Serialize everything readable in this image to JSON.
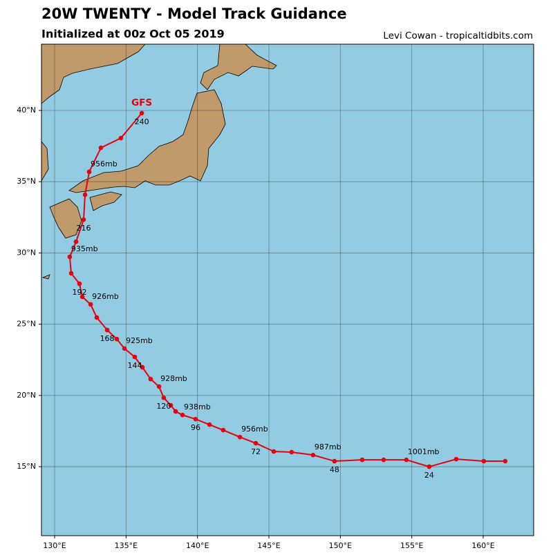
{
  "chart_data": {
    "type": "line",
    "title": "20W TWENTY - Model Track Guidance",
    "subtitle": "Initialized at 00z Oct 05 2019",
    "credit": "Levi Cowan - tropicaltidbits.com",
    "x": [
      161.54,
      160.04,
      158.11,
      156.22,
      154.62,
      153.03,
      151.53,
      149.59,
      148.09,
      146.59,
      145.34,
      144.08,
      142.97,
      141.8,
      140.84,
      139.87,
      138.95,
      138.47,
      138.13,
      137.64,
      137.31,
      136.72,
      136.14,
      135.61,
      134.89,
      134.35,
      133.68,
      132.95,
      132.52,
      131.94,
      131.74,
      131.16,
      131.06,
      131.5,
      132.03,
      132.13,
      132.42,
      133.24,
      134.64,
      136.1
    ],
    "series": [
      {
        "name": "GFS",
        "color": "#e8000b",
        "values": [
          15.39,
          15.39,
          15.53,
          15.0,
          15.48,
          15.48,
          15.48,
          15.39,
          15.82,
          16.02,
          16.07,
          16.65,
          17.08,
          17.57,
          17.95,
          18.34,
          18.63,
          18.88,
          19.31,
          19.84,
          20.62,
          21.15,
          21.98,
          22.7,
          23.29,
          23.96,
          24.59,
          25.47,
          26.39,
          26.92,
          27.84,
          28.57,
          29.73,
          30.79,
          32.34,
          34.09,
          35.69,
          37.38,
          38.06,
          39.81
        ]
      }
    ],
    "forecast_hours": [
      "24",
      "48",
      "72",
      "96",
      "120",
      "144",
      "168",
      "192",
      "216",
      "240"
    ],
    "pressure_labels": [
      "1001mb",
      "987mb",
      "956mb",
      "938mb",
      "928mb",
      "925mb",
      "926mb",
      "935mb",
      "956mb"
    ],
    "xlim": [
      129.08,
      163.53
    ],
    "ylim": [
      10.16,
      44.65
    ],
    "xticks": [
      {
        "value": 130,
        "label": "130°E"
      },
      {
        "value": 135,
        "label": "135°E"
      },
      {
        "value": 140,
        "label": "140°E"
      },
      {
        "value": 145,
        "label": "145°E"
      },
      {
        "value": 150,
        "label": "150°E"
      },
      {
        "value": 155,
        "label": "155°E"
      },
      {
        "value": 160,
        "label": "160°E"
      }
    ],
    "yticks": [
      {
        "value": 15,
        "label": "15°N"
      },
      {
        "value": 20,
        "label": "20°N"
      },
      {
        "value": 25,
        "label": "25°N"
      },
      {
        "value": 30,
        "label": "30°N"
      },
      {
        "value": 35,
        "label": "35°N"
      },
      {
        "value": 40,
        "label": "40°N"
      }
    ],
    "grid": true
  }
}
